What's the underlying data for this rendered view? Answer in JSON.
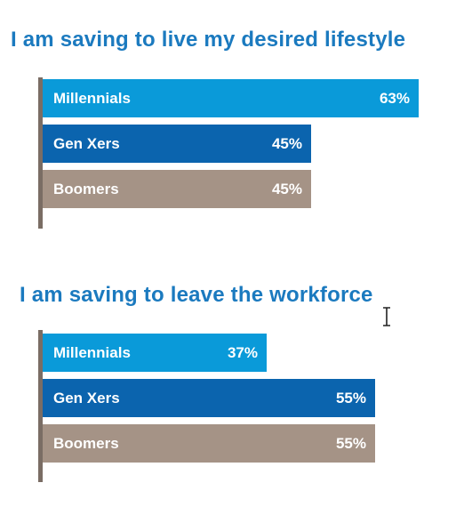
{
  "colors": {
    "title": "#1b7abf",
    "axis": "#7a6d64",
    "millennials": "#0a9ad9",
    "gen_xers": "#0b64ae",
    "boomers": "#a59386"
  },
  "chart_data": [
    {
      "type": "bar",
      "orientation": "horizontal",
      "title": "I am saving to live my desired lifestyle",
      "categories": [
        "Millennials",
        "Gen Xers",
        "Boomers"
      ],
      "values": [
        63,
        45,
        45
      ],
      "value_labels": [
        "63%",
        "45%",
        "45%"
      ],
      "unit": "%",
      "xlim": [
        0,
        100
      ],
      "grid": false,
      "legend": "none"
    },
    {
      "type": "bar",
      "orientation": "horizontal",
      "title": "I am saving to leave the workforce",
      "categories": [
        "Millennials",
        "Gen Xers",
        "Boomers"
      ],
      "values": [
        37,
        55,
        55
      ],
      "value_labels": [
        "37%",
        "55%",
        "55%"
      ],
      "unit": "%",
      "xlim": [
        0,
        100
      ],
      "grid": false,
      "legend": "none"
    }
  ]
}
